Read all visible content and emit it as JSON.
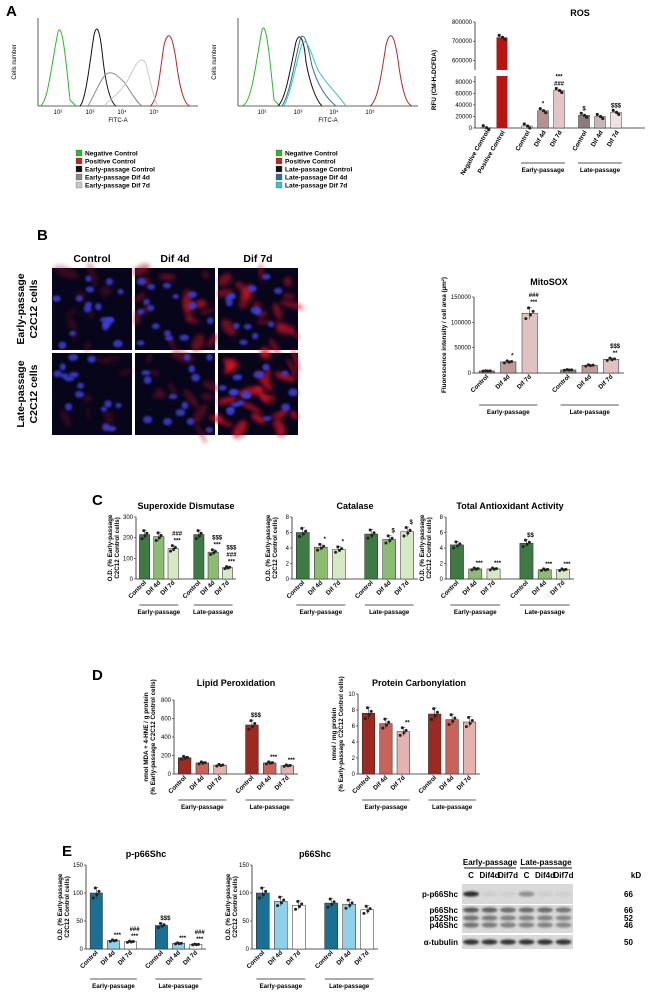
{
  "panels": {
    "A": {
      "label": "A",
      "flow1": {
        "ylabel": "Cells number",
        "xlabel": "FITC-A",
        "legend": [
          {
            "label": "Negative Control",
            "color": "#2fb52f"
          },
          {
            "label": "Positive Control",
            "color": "#b52a2a"
          },
          {
            "label": "Early-passage Control",
            "color": "#111111"
          },
          {
            "label": "Early-passage Dif 4d",
            "color": "#8a8a8a"
          },
          {
            "label": "Early-passage Dif 7d",
            "color": "#c8c8c8"
          }
        ]
      },
      "flow2": {
        "ylabel": "Cells number",
        "xlabel": "FITC-A",
        "legend": [
          {
            "label": "Negative Control",
            "color": "#2fb52f"
          },
          {
            "label": "Positive Control",
            "color": "#b52a2a"
          },
          {
            "label": "Late-passage Control",
            "color": "#111111"
          },
          {
            "label": "Late-passage Dif 4d",
            "color": "#2b6f8c"
          },
          {
            "label": "Late-passage Dif 7d",
            "color": "#39c2c2"
          }
        ]
      },
      "xticks": [
        "10²",
        "10³",
        "10⁴",
        "10⁵"
      ]
    },
    "B": {
      "label": "B",
      "columns": [
        "Control",
        "Dif 4d",
        "Dif 7d"
      ],
      "rows": [
        "Early-passage\nC2C12 cells",
        "Late-passage\nC2C12 cells"
      ]
    },
    "C": {
      "label": "C"
    },
    "D": {
      "label": "D"
    },
    "E": {
      "label": "E",
      "blot": {
        "groups": [
          "Early-passage",
          "Late-passage"
        ],
        "lanes": [
          "C",
          "Dif4d",
          "Dif7d",
          "C",
          "Dif4d",
          "Dif7d"
        ],
        "kd_label": "kD",
        "rows": [
          {
            "name": "p-p66Shc",
            "kd": [
              "66"
            ]
          },
          {
            "name": "p66Shc\np52Shc\np46Shc",
            "kd": [
              "66",
              "52",
              "46"
            ]
          },
          {
            "name": "α-tubulin",
            "kd": [
              "50"
            ]
          }
        ]
      }
    }
  },
  "chart_data": [
    {
      "id": "ros",
      "type": "bar",
      "title": "ROS",
      "ylabel": "RFU (CM-H₂DCFDA)",
      "broken_axis": true,
      "yticks_lower": [
        0,
        20000,
        40000,
        60000,
        80000
      ],
      "yticks_upper": [
        600000,
        700000,
        800000
      ],
      "categories": [
        "Negative Control",
        "Positive Control",
        "Control",
        "Dif 4d",
        "Dif 7d",
        "Control",
        "Dif 4d",
        "Dif 7d"
      ],
      "values": [
        500,
        720000,
        3500,
        30000,
        65000,
        22000,
        20000,
        27000
      ],
      "colors": [
        "#f0f0f0",
        "#b81414",
        "#f0f0f0",
        "#b8928e",
        "#e4c5c5",
        "#8a7c7c",
        "#c9b7b7",
        "#f0e2e2"
      ],
      "annotations": [
        "",
        "",
        "",
        "*",
        "***\n###",
        "$",
        "",
        "$$$"
      ],
      "groups": [
        {
          "label": "Early-passage",
          "from": 2,
          "to": 4
        },
        {
          "label": "Late-passage",
          "from": 5,
          "to": 7
        }
      ]
    },
    {
      "id": "mitosox",
      "type": "bar",
      "title": "MitoSOX",
      "ylabel": "Fluorescence intensity / cell area (µm²)",
      "ylim": [
        0,
        150000
      ],
      "yticks": [
        0,
        50000,
        100000,
        150000
      ],
      "categories": [
        "Control",
        "Dif 4d",
        "Dif 7d",
        "Control",
        "Dif 4d",
        "Dif 7d"
      ],
      "values": [
        4000,
        22000,
        118000,
        6000,
        15000,
        27000
      ],
      "colors": [
        "#9e7f7f",
        "#c09999",
        "#e0c2c2",
        "#9e7f7f",
        "#c09999",
        "#e0c2c2"
      ],
      "annotations": [
        "",
        "*",
        "###\n***",
        "",
        "",
        "$$$\n**"
      ],
      "groups": [
        {
          "label": "Early-passage",
          "from": 0,
          "to": 2
        },
        {
          "label": "Late-passage",
          "from": 3,
          "to": 5
        }
      ]
    },
    {
      "id": "sod",
      "type": "bar",
      "title": "Superoxide Dismutase",
      "ylabel": "O.D. (% Early-passage C2C12 Control cells)",
      "ylim": [
        0,
        300
      ],
      "yticks": [
        0,
        100,
        200,
        300
      ],
      "categories": [
        "Control",
        "Dif 4d",
        "Dif 7d",
        "Control",
        "Dif 4d",
        "Dif 7d"
      ],
      "values": [
        215,
        205,
        148,
        215,
        130,
        55
      ],
      "colors": [
        "#3f7a44",
        "#8cbc71",
        "#d5eac4",
        "#3f7a44",
        "#8cbc71",
        "#d5eac4"
      ],
      "annotations": [
        "",
        "",
        "###\n***",
        "",
        "$$$\n***",
        "$$$\n###\n***"
      ],
      "groups": [
        {
          "label": "Early-passage",
          "from": 0,
          "to": 2
        },
        {
          "label": "Late-passage",
          "from": 3,
          "to": 5
        }
      ]
    },
    {
      "id": "catalase",
      "type": "bar",
      "title": "Catalase",
      "ylabel": "O.D. (% Early-passage C2C12 Control cells)",
      "ylim": [
        0,
        8
      ],
      "yticks": [
        0,
        2,
        4,
        6,
        8
      ],
      "categories": [
        "Control",
        "Dif 4d",
        "Dif 7d",
        "Control",
        "Dif 4d",
        "Dif 7d"
      ],
      "values": [
        6.0,
        4.1,
        3.8,
        5.8,
        5.1,
        6.1
      ],
      "colors": [
        "#3f7a44",
        "#8cbc71",
        "#d5eac4",
        "#3f7a44",
        "#8cbc71",
        "#d5eac4"
      ],
      "annotations": [
        "",
        "*",
        "*",
        "",
        "$",
        "$"
      ],
      "groups": [
        {
          "label": "Early-passage",
          "from": 0,
          "to": 2
        },
        {
          "label": "Late-passage",
          "from": 3,
          "to": 5
        }
      ]
    },
    {
      "id": "tac",
      "type": "bar",
      "title": "Total Antioxidant Activity",
      "ylabel": "O.D. (% Early-passage C2C12 Control cells)",
      "ylim": [
        0,
        8
      ],
      "yticks": [
        0,
        2,
        4,
        6,
        8
      ],
      "categories": [
        "Control",
        "Dif 4d",
        "Dif 7d",
        "Control",
        "Dif 4d",
        "Dif 7d"
      ],
      "values": [
        4.4,
        1.3,
        1.3,
        4.6,
        1.2,
        1.2
      ],
      "colors": [
        "#3f7a44",
        "#8cbc71",
        "#d5eac4",
        "#3f7a44",
        "#8cbc71",
        "#d5eac4"
      ],
      "annotations": [
        "",
        "***",
        "***",
        "$$",
        "***",
        "***"
      ],
      "groups": [
        {
          "label": "Early-passage",
          "from": 0,
          "to": 2
        },
        {
          "label": "Late-passage",
          "from": 3,
          "to": 5
        }
      ]
    },
    {
      "id": "lipid",
      "type": "bar",
      "title": "Lipid Peroxidation",
      "ylabel": "nmol MDA + 4-HNE / g protein (% Early-passage C2C12 Control cells)",
      "ylim": [
        0,
        800
      ],
      "yticks": [
        0,
        200,
        400,
        600,
        800
      ],
      "categories": [
        "Control",
        "Dif 4d",
        "Dif 7d",
        "Control",
        "Dif 4d",
        "Dif 7d"
      ],
      "values": [
        175,
        120,
        95,
        530,
        120,
        90
      ],
      "colors": [
        "#9c2a22",
        "#c8625a",
        "#e6b2ae",
        "#9c2a22",
        "#c8625a",
        "#e6b2ae"
      ],
      "annotations": [
        "",
        "",
        "",
        "$$$",
        "***",
        "***"
      ],
      "groups": [
        {
          "label": "Early-passage",
          "from": 0,
          "to": 2
        },
        {
          "label": "Late-passage",
          "from": 3,
          "to": 5
        }
      ]
    },
    {
      "id": "protein",
      "type": "bar",
      "title": "Protein Carbonylation",
      "ylabel": "nmol / mg protein (% Early-passage C2C12 Control cells)",
      "ylim": [
        0,
        10
      ],
      "yticks": [
        0,
        2,
        4,
        6,
        8,
        10
      ],
      "categories": [
        "Control",
        "Dif 4d",
        "Dif 7d",
        "Control",
        "Dif 4d",
        "Dif 7d"
      ],
      "values": [
        7.6,
        6.3,
        5.3,
        7.5,
        6.8,
        6.5
      ],
      "colors": [
        "#9c2a22",
        "#c8625a",
        "#e6b2ae",
        "#9c2a22",
        "#c8625a",
        "#e6b2ae"
      ],
      "annotations": [
        "",
        "",
        "**",
        "",
        "",
        ""
      ],
      "groups": [
        {
          "label": "Early-passage",
          "from": 0,
          "to": 2
        },
        {
          "label": "Late-passage",
          "from": 3,
          "to": 5
        }
      ]
    },
    {
      "id": "pp66",
      "type": "bar",
      "title": "p-p66Shc",
      "ylabel": "O.D. (% Early-passage C2C12 Control cells)",
      "ylim": [
        0,
        150
      ],
      "yticks": [
        0,
        50,
        100,
        150
      ],
      "categories": [
        "Control",
        "Dif 4d",
        "Dif 7d",
        "Control",
        "Dif 4d",
        "Dif 7d"
      ],
      "values": [
        100,
        15,
        13,
        42,
        10,
        8
      ],
      "colors": [
        "#1a6f95",
        "#8fd0ea",
        "#ffffff",
        "#1a6f95",
        "#8fd0ea",
        "#ffffff"
      ],
      "annotations": [
        "",
        "***",
        "###\n***",
        "$$$",
        "***",
        "###\n***"
      ],
      "groups": [
        {
          "label": "Early-passage",
          "from": 0,
          "to": 2
        },
        {
          "label": "Late-passage",
          "from": 3,
          "to": 5
        }
      ]
    },
    {
      "id": "p66",
      "type": "bar",
      "title": "p66Shc",
      "ylabel": "O.D. (% Early-passage C2C12 Control cells)",
      "ylim": [
        0,
        150
      ],
      "yticks": [
        0,
        50,
        100,
        150
      ],
      "categories": [
        "Control",
        "Dif 4d",
        "Dif 7d",
        "Control",
        "Dif 4d",
        "Dif 7d"
      ],
      "values": [
        100,
        85,
        78,
        82,
        80,
        70
      ],
      "colors": [
        "#1a6f95",
        "#8fd0ea",
        "#ffffff",
        "#1a6f95",
        "#8fd0ea",
        "#ffffff"
      ],
      "annotations": [
        "",
        "",
        "",
        "",
        "",
        ""
      ],
      "groups": [
        {
          "label": "Early-passage",
          "from": 0,
          "to": 2
        },
        {
          "label": "Late-passage",
          "from": 3,
          "to": 5
        }
      ]
    }
  ]
}
